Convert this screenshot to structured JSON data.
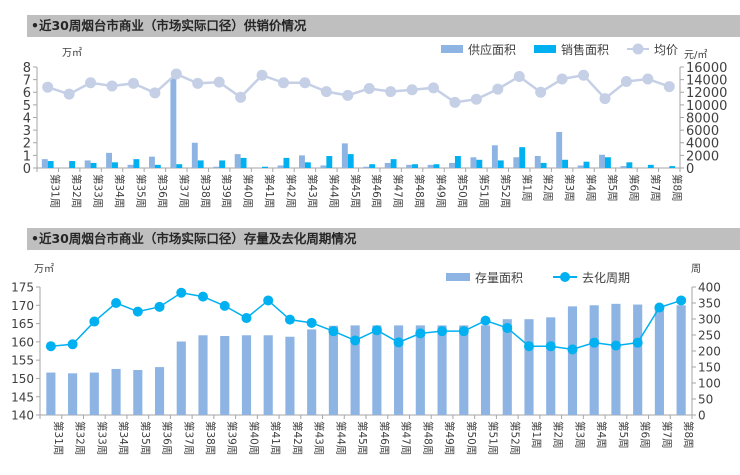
{
  "chart_data": [
    {
      "type": "bar",
      "title": "•近30周烟台市商业（市场实际口径）供销价情况",
      "ylabel_left": "万㎡",
      "ylabel_right": "元/㎡",
      "ylim_left": [
        0,
        8
      ],
      "yticks_left": [
        0,
        1,
        2,
        3,
        4,
        5,
        6,
        7,
        8
      ],
      "ylim_right": [
        0,
        16000
      ],
      "yticks_right": [
        0,
        2000,
        4000,
        6000,
        8000,
        10000,
        12000,
        14000,
        16000
      ],
      "legend_position": "top-right",
      "grid": false,
      "categories": [
        "第31周",
        "第32周",
        "第33周",
        "第34周",
        "第35周",
        "第36周",
        "第37周",
        "第38周",
        "第39周",
        "第40周",
        "第41周",
        "第42周",
        "第43周",
        "第44周",
        "第45周",
        "第46周",
        "第47周",
        "第48周",
        "第49周",
        "第50周",
        "第51周",
        "第52周",
        "第1周",
        "第2周",
        "第3周",
        "第4周",
        "第5周",
        "第6周",
        "第7周",
        "第8周"
      ],
      "series": [
        {
          "name": "供应面积",
          "type": "bar",
          "axis": "left",
          "color": "#8db4e2",
          "values": [
            0.7,
            0,
            0.6,
            1.2,
            0.25,
            0.9,
            7.1,
            2.0,
            0.1,
            1.1,
            0,
            0.2,
            1.0,
            0.2,
            1.95,
            0.1,
            0.4,
            0.25,
            0.25,
            0.4,
            0.85,
            1.8,
            0.85,
            0.95,
            2.85,
            0.2,
            1.05,
            0.15,
            0,
            0
          ]
        },
        {
          "name": "销售面积",
          "type": "bar",
          "axis": "left",
          "color": "#00b0f0",
          "values": [
            0.55,
            0.55,
            0.4,
            0.45,
            0.7,
            0.25,
            0.3,
            0.6,
            0.6,
            0.8,
            0.1,
            0.8,
            0.45,
            0.95,
            1.1,
            0.3,
            0.7,
            0.3,
            0.3,
            0.95,
            0.65,
            0.6,
            1.65,
            0.4,
            0.65,
            0.5,
            0.85,
            0.45,
            0.25,
            0.15
          ]
        },
        {
          "name": "均价",
          "type": "line",
          "axis": "right",
          "color": "#c5d0e6",
          "values": [
            12800,
            11700,
            13500,
            13000,
            13400,
            11900,
            14900,
            13400,
            13600,
            11200,
            14700,
            13500,
            13500,
            12100,
            11500,
            12600,
            12100,
            12400,
            12700,
            10400,
            10900,
            12500,
            14500,
            12000,
            14100,
            14700,
            11000,
            13700,
            14100,
            12900
          ]
        }
      ]
    },
    {
      "type": "bar",
      "title": "•近30周烟台市商业（市场实际口径）存量及去化周期情况",
      "ylabel_left": "万㎡",
      "ylabel_right": "周",
      "ylim_left": [
        140,
        175
      ],
      "yticks_left": [
        140,
        145,
        150,
        155,
        160,
        165,
        170,
        175
      ],
      "ylim_right": [
        0,
        400
      ],
      "yticks_right": [
        0,
        50,
        100,
        150,
        200,
        250,
        300,
        350,
        400
      ],
      "legend_position": "top-right",
      "grid": false,
      "categories": [
        "第31周",
        "第32周",
        "第33周",
        "第34周",
        "第35周",
        "第36周",
        "第37周",
        "第38周",
        "第39周",
        "第40周",
        "第41周",
        "第42周",
        "第43周",
        "第44周",
        "第45周",
        "第46周",
        "第47周",
        "第48周",
        "第49周",
        "第50周",
        "第51周",
        "第52周",
        "第1周",
        "第2周",
        "第3周",
        "第4周",
        "第5周",
        "第6周",
        "第7周",
        "第8周"
      ],
      "series": [
        {
          "name": "存量面积",
          "type": "bar",
          "axis": "left",
          "color": "#8db4e2",
          "values": [
            151.6,
            151.4,
            151.6,
            152.6,
            152.3,
            153.1,
            160.1,
            161.8,
            161.6,
            161.8,
            161.8,
            161.4,
            163.4,
            164.4,
            164.5,
            164.5,
            164.5,
            164.5,
            164.5,
            164.5,
            164.5,
            166.2,
            166.2,
            166.7,
            169.7,
            170.0,
            170.4,
            170.2,
            169.6,
            170.0
          ]
        },
        {
          "name": "去化周期",
          "type": "line",
          "axis": "right",
          "color": "#00b0f0",
          "values": [
            215,
            221,
            292,
            350,
            323,
            338,
            382,
            370,
            341,
            303,
            358,
            298,
            288,
            262,
            233,
            265,
            227,
            255,
            262,
            262,
            295,
            272,
            215,
            215,
            205,
            226,
            217,
            226,
            336,
            358
          ]
        }
      ]
    }
  ]
}
